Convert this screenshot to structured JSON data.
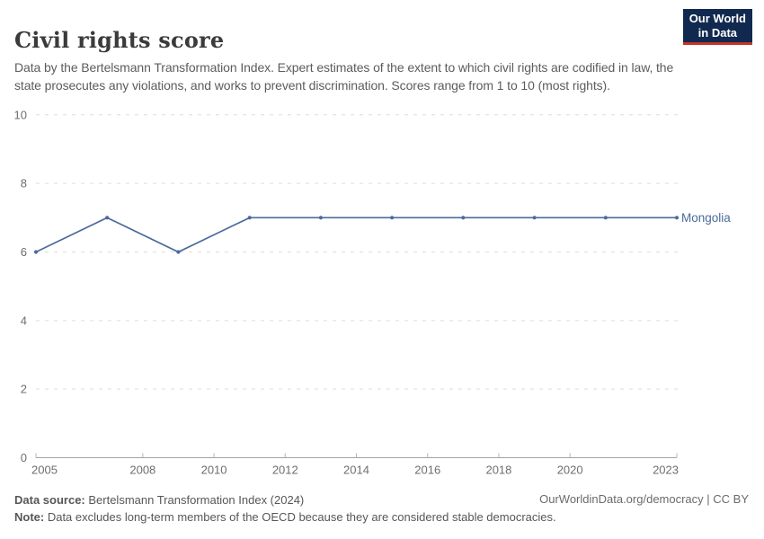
{
  "header": {
    "title": "Civil rights score",
    "subtitle": "Data by the Bertelsmann Transformation Index. Expert estimates of the extent to which civil rights are codified in law, the state prosecutes any violations, and works to prevent discrimination. Scores range from 1 to 10 (most rights)."
  },
  "logo": {
    "line1": "Our World",
    "line2": "in Data",
    "bg_color": "#12294f",
    "accent_color": "#c4342c"
  },
  "chart_data": {
    "type": "line",
    "title": "Civil rights score",
    "xlabel": "",
    "ylabel": "",
    "xlim": [
      2005,
      2023
    ],
    "ylim": [
      0,
      10
    ],
    "x_ticks": [
      2005,
      2008,
      2010,
      2012,
      2014,
      2016,
      2018,
      2020,
      2023
    ],
    "y_ticks": [
      0,
      2,
      4,
      6,
      8,
      10
    ],
    "grid": "horizontal-dashed",
    "legend_position": "line-end-label",
    "series": [
      {
        "name": "Mongolia",
        "color": "#4C6A9C",
        "x": [
          2005,
          2007,
          2009,
          2011,
          2013,
          2015,
          2017,
          2019,
          2021,
          2023
        ],
        "values": [
          6,
          7,
          6,
          7,
          7,
          7,
          7,
          7,
          7,
          7
        ]
      }
    ]
  },
  "footer": {
    "data_source_label": "Data source:",
    "data_source_text": " Bertelsmann Transformation Index (2024)",
    "note_label": "Note:",
    "note_text": " Data excludes long-term members of the OECD because they are considered stable democracies.",
    "attribution": "OurWorldinData.org/democracy | CC BY"
  }
}
